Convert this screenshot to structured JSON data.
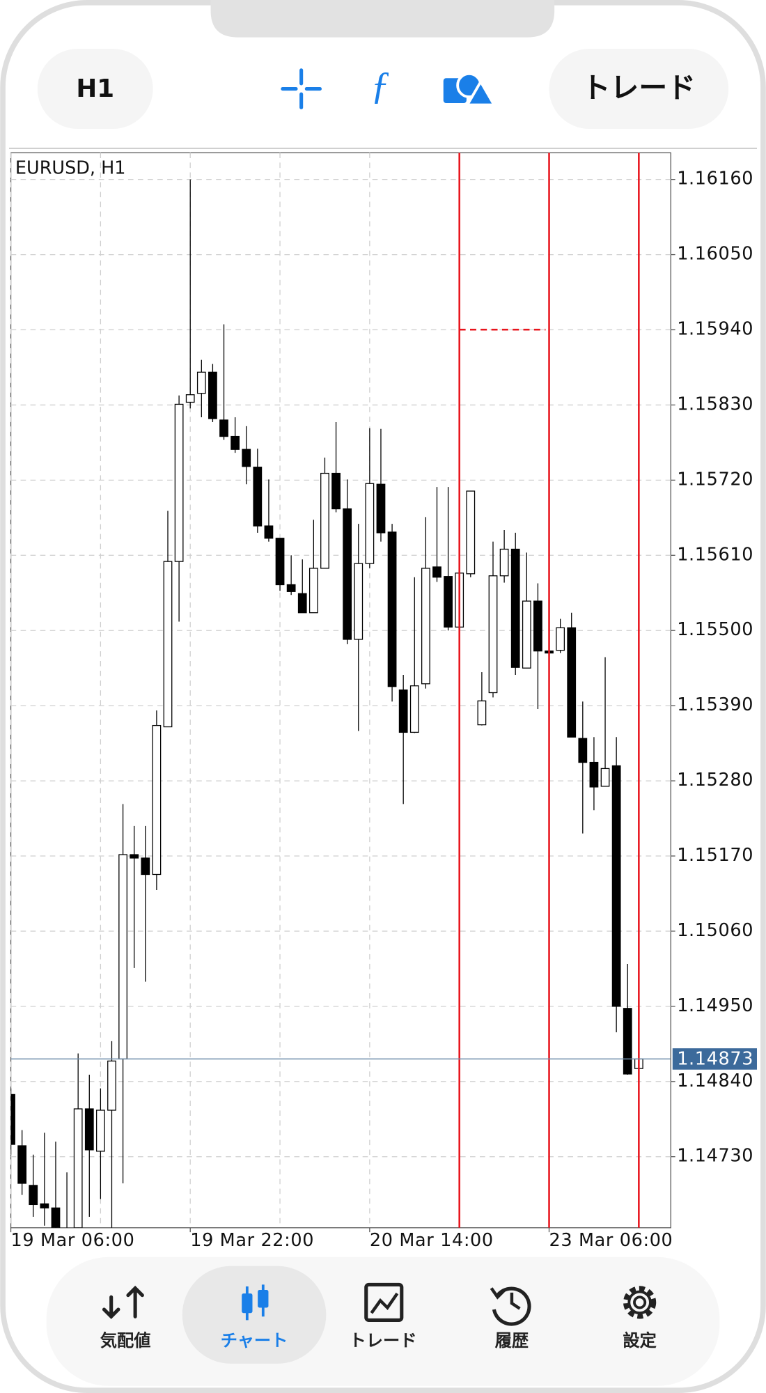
{
  "toolbar": {
    "timeframe": "H1",
    "trade_button": "トレード"
  },
  "chart_data": {
    "type": "candlestick",
    "title": "EURUSD, H1",
    "categories": [
      "19 Mar 06:00",
      null,
      null,
      null,
      null,
      null,
      null,
      null,
      null,
      null,
      null,
      null,
      null,
      null,
      null,
      null,
      "19 Mar 22:00",
      null,
      null,
      null,
      null,
      null,
      null,
      null,
      null,
      null,
      null,
      null,
      null,
      null,
      null,
      null,
      "20 Mar 14:00",
      null,
      null,
      null,
      null,
      null,
      null,
      null,
      null,
      null,
      null,
      null,
      null,
      null,
      null,
      null,
      "23 Mar 06:00",
      null,
      null,
      null,
      null,
      null,
      null,
      null,
      null
    ],
    "open": [
      1.14821,
      1.14746,
      1.14688,
      1.14661,
      1.14655,
      1.14622,
      1.14626,
      1.148,
      1.14738,
      1.14798,
      1.14873,
      1.15172,
      1.15167,
      1.15143,
      1.15359,
      1.15601,
      1.15834,
      1.15847,
      1.15878,
      1.15808,
      1.15784,
      1.15765,
      1.15739,
      1.15653,
      1.15635,
      1.15567,
      1.15554,
      1.15526,
      1.15591,
      1.1573,
      1.15678,
      1.15487,
      1.15598,
      1.15714,
      1.15644,
      1.15413,
      1.15351,
      1.15422,
      1.15593,
      1.15579,
      1.15505,
      1.15583,
      1.15362,
      1.15409,
      1.1558,
      1.15619,
      1.15445,
      1.15543,
      1.1547,
      1.15471,
      1.15504,
      1.15342,
      1.15307,
      1.15272,
      1.15302,
      1.14947,
      1.14859
    ],
    "high": [
      1.1483,
      1.14769,
      1.14733,
      1.14765,
      1.14752,
      1.14707,
      1.14881,
      1.1485,
      1.1483,
      1.14899,
      1.15246,
      1.15214,
      1.15214,
      1.15383,
      1.15675,
      1.15844,
      1.1616,
      1.15896,
      1.1589,
      1.15948,
      1.15812,
      1.15799,
      1.15766,
      1.15721,
      1.15635,
      1.1561,
      1.15604,
      1.15662,
      1.15753,
      1.15805,
      1.15721,
      1.15656,
      1.15796,
      1.15795,
      1.15656,
      1.15435,
      1.15578,
      1.15666,
      1.1571,
      1.1571,
      1.15708,
      1.15704,
      1.15439,
      1.1563,
      1.15647,
      1.15643,
      1.15614,
      1.15569,
      1.15476,
      1.15517,
      1.15526,
      1.15396,
      1.15344,
      1.15461,
      1.15344,
      1.15012,
      1.14873
    ],
    "low": [
      1.14733,
      1.14674,
      1.14642,
      1.14629,
      1.14603,
      1.14577,
      1.14609,
      1.14642,
      1.14668,
      1.14616,
      1.14691,
      1.15006,
      1.14986,
      1.1512,
      1.15359,
      1.15513,
      1.15825,
      1.15812,
      1.15805,
      1.15779,
      1.1576,
      1.15714,
      1.15643,
      1.1563,
      1.15558,
      1.15552,
      1.15526,
      1.15526,
      1.15591,
      1.15673,
      1.1548,
      1.15353,
      1.15591,
      1.1563,
      1.15396,
      1.15246,
      1.1535,
      1.15415,
      1.15571,
      1.155,
      1.1548,
      1.15578,
      1.15361,
      1.15402,
      1.1557,
      1.15435,
      1.15445,
      1.15385,
      1.15461,
      1.15467,
      1.15344,
      1.15203,
      1.15237,
      1.15272,
      1.14912,
      1.1485,
      1.14859
    ],
    "close": [
      1.14748,
      1.14691,
      1.1466,
      1.14655,
      1.14616,
      1.14603,
      1.148,
      1.1474,
      1.14798,
      1.1487,
      1.15172,
      1.15167,
      1.15143,
      1.15361,
      1.15601,
      1.15831,
      1.15845,
      1.15878,
      1.1581,
      1.15784,
      1.15765,
      1.1574,
      1.15653,
      1.15635,
      1.15567,
      1.15557,
      1.15526,
      1.15591,
      1.1573,
      1.15678,
      1.15487,
      1.15598,
      1.15715,
      1.15643,
      1.15418,
      1.15351,
      1.15419,
      1.15591,
      1.15578,
      1.15505,
      1.15584,
      1.15704,
      1.15397,
      1.1558,
      1.15619,
      1.15446,
      1.15543,
      1.1547,
      1.15467,
      1.15504,
      1.15344,
      1.15307,
      1.15271,
      1.15298,
      1.1495,
      1.14851,
      1.14873
    ],
    "up_color": "#ffffff",
    "down_color": "#000000",
    "ylim": [
      1.14626,
      1.16199
    ],
    "yticks": [
      {
        "value": 1.1616,
        "label": "1.16160"
      },
      {
        "value": 1.1605,
        "label": "1.16050"
      },
      {
        "value": 1.1594,
        "label": "1.15940"
      },
      {
        "value": 1.1583,
        "label": "1.15830"
      },
      {
        "value": 1.1572,
        "label": "1.15720"
      },
      {
        "value": 1.1561,
        "label": "1.15610"
      },
      {
        "value": 1.155,
        "label": "1.15500"
      },
      {
        "value": 1.1539,
        "label": "1.15390"
      },
      {
        "value": 1.1528,
        "label": "1.15280"
      },
      {
        "value": 1.1517,
        "label": "1.15170"
      },
      {
        "value": 1.1506,
        "label": "1.15060"
      },
      {
        "value": 1.1495,
        "label": "1.14950"
      },
      {
        "value": 1.1484,
        "label": "1.14840"
      },
      {
        "value": 1.1473,
        "label": "1.14730"
      }
    ],
    "current_price": 1.14873,
    "grid": true
  },
  "tabs": [
    "気配値",
    "チャート",
    "トレード",
    "履歴",
    "設定"
  ]
}
